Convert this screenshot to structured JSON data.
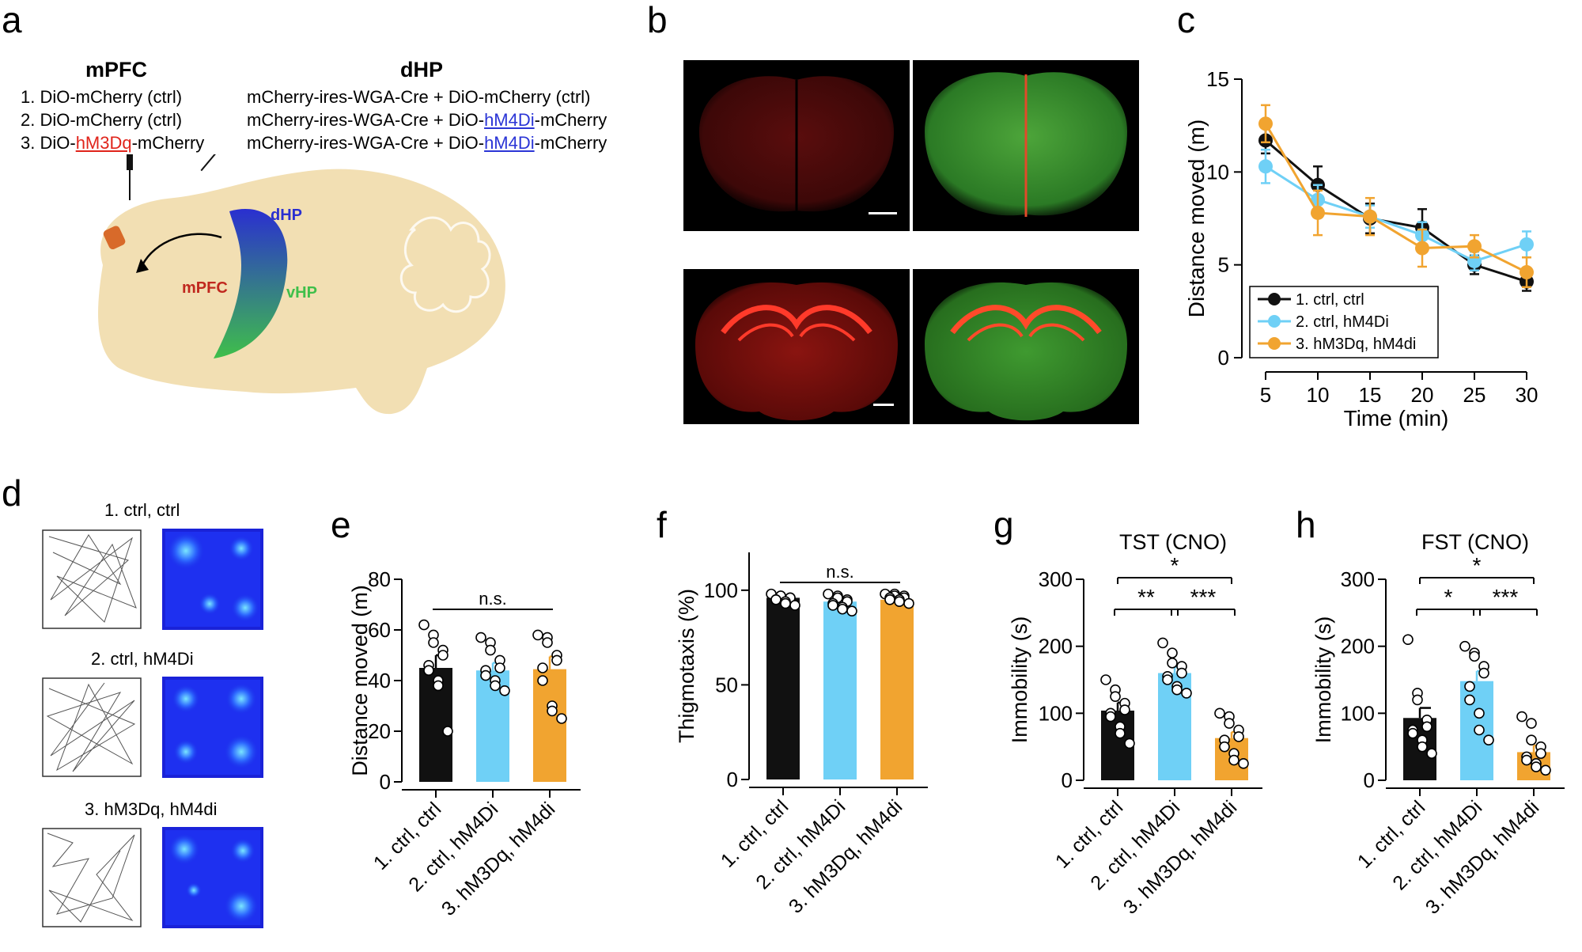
{
  "panel_letters": [
    "a",
    "b",
    "c",
    "d",
    "e",
    "f",
    "g",
    "h"
  ],
  "panel_a": {
    "mpfc_header": "mPFC",
    "mpfc_lines": [
      {
        "pre": "1. DiO-mCherry (ctrl)",
        "hl": "",
        "post": ""
      },
      {
        "pre": "2. DiO-mCherry (ctrl)",
        "hl": "",
        "post": ""
      },
      {
        "pre": "3. DiO-",
        "hl": "hM3Dq",
        "post": "-mCherry"
      }
    ],
    "dhp_header": "dHP",
    "dhp_lines": [
      {
        "pre": "mCherry-ires-WGA-Cre + DiO-mCherry (ctrl)",
        "hl": "",
        "post": ""
      },
      {
        "pre": "mCherry-ires-WGA-Cre + DiO-",
        "hl": "hM4Di",
        "post": "-mCherry"
      },
      {
        "pre": "mCherry-ires-WGA-Cre + DiO-",
        "hl": "hM4Di",
        "post": "-mCherry"
      }
    ],
    "brain_labels": {
      "dhp": "dHP",
      "vhp": "vHP",
      "mpfc": "mPFC"
    },
    "colors": {
      "hM3Dq": "#e0241b",
      "hM4Di": "#2b35d6",
      "brain": "#f2dfb3",
      "mpfc_region": "#d86a2a",
      "dhp_label": "#2a2fd0",
      "vhp_label": "#3fbf4a",
      "mpfc_label": "#c0281e"
    }
  },
  "panel_d": {
    "titles": [
      "1. ctrl, ctrl",
      "2. ctrl, hM4Di",
      "3. hM3Dq, hM4di"
    ]
  },
  "colors": {
    "ctrl": "#111111",
    "hM4Di": "#6fd0f6",
    "hM3Dq": "#f1a430"
  },
  "chart_data": [
    {
      "id": "c",
      "type": "line",
      "xlabel": "Time (min)",
      "ylabel": "Distance moved (m)",
      "x": [
        5,
        10,
        15,
        20,
        25,
        30
      ],
      "xticks": [
        "5",
        "10",
        "15",
        "20",
        "25",
        "30"
      ],
      "ylim": [
        0,
        15
      ],
      "yticks": [
        "0",
        "5",
        "10",
        "15"
      ],
      "legend_position": "bottom-left",
      "series": [
        {
          "name": "1. ctrl, ctrl",
          "color": "#111111",
          "values": [
            11.7,
            9.3,
            7.5,
            7.0,
            5.0,
            4.1
          ],
          "err": [
            0.7,
            1.0,
            0.8,
            1.0,
            0.5,
            0.5
          ]
        },
        {
          "name": "2. ctrl, hM4Di",
          "color": "#6fd0f6",
          "values": [
            10.3,
            8.5,
            7.6,
            6.6,
            5.2,
            6.1
          ],
          "err": [
            0.9,
            0.8,
            0.6,
            0.7,
            0.5,
            0.7
          ]
        },
        {
          "name": "3. hM3Dq, hM4di",
          "color": "#f1a430",
          "values": [
            12.6,
            7.8,
            7.6,
            5.9,
            6.0,
            4.6
          ],
          "err": [
            1.0,
            1.2,
            1.0,
            1.0,
            0.6,
            0.8
          ]
        }
      ]
    },
    {
      "id": "e",
      "type": "bar",
      "title": "",
      "ylabel": "Distance moved (m)",
      "categories": [
        "1. ctrl, ctrl",
        "2. ctrl, hM4Di",
        "3. hM3Dq, hM4di"
      ],
      "values": [
        45,
        44,
        44.5
      ],
      "err": [
        5,
        3,
        5
      ],
      "ylim": [
        0,
        80
      ],
      "yticks": [
        "0",
        "20",
        "40",
        "60",
        "80"
      ],
      "points": [
        [
          62,
          58,
          55,
          52,
          50,
          46,
          44,
          40,
          38,
          20
        ],
        [
          57,
          55,
          52,
          48,
          45,
          44,
          42,
          40,
          38,
          36
        ],
        [
          58,
          57,
          55,
          50,
          48,
          45,
          40,
          30,
          28,
          25
        ]
      ],
      "sig": [
        {
          "from": 0,
          "to": 2,
          "label": "n.s.",
          "level": 1
        }
      ]
    },
    {
      "id": "f",
      "type": "bar",
      "title": "",
      "ylabel": "Thigmotaxis (%)",
      "categories": [
        "1. ctrl, ctrl",
        "2. ctrl, hM4Di",
        "3. hM3Dq, hM4di"
      ],
      "values": [
        96,
        94,
        95
      ],
      "err": [
        1,
        1.5,
        1
      ],
      "ylim": [
        0,
        120
      ],
      "yticks": [
        "0",
        "50",
        "100"
      ],
      "points": [
        [
          98,
          97,
          97,
          96,
          96,
          95,
          95,
          94,
          93,
          92
        ],
        [
          98,
          97,
          96,
          95,
          94,
          93,
          92,
          91,
          90,
          89
        ],
        [
          98,
          98,
          97,
          97,
          96,
          96,
          95,
          95,
          94,
          93
        ]
      ],
      "sig": [
        {
          "from": 0,
          "to": 2,
          "label": "n.s.",
          "level": 1
        }
      ]
    },
    {
      "id": "g",
      "type": "bar",
      "title": "TST (CNO)",
      "ylabel": "Immobility (s)",
      "categories": [
        "1. ctrl, ctrl",
        "2. ctrl, hM4Di",
        "3. hM3Dq, hM4di"
      ],
      "values": [
        104,
        160,
        63
      ],
      "err": [
        12,
        9,
        9
      ],
      "ylim": [
        0,
        300
      ],
      "yticks": [
        "0",
        "100",
        "200",
        "300"
      ],
      "points": [
        [
          150,
          135,
          125,
          115,
          105,
          100,
          95,
          80,
          70,
          55
        ],
        [
          205,
          190,
          175,
          170,
          160,
          155,
          150,
          140,
          135,
          130
        ],
        [
          100,
          95,
          85,
          75,
          65,
          60,
          50,
          40,
          30,
          25
        ]
      ],
      "sig": [
        {
          "from": 0,
          "to": 2,
          "label": "*",
          "level": 2
        },
        {
          "from": 0,
          "to": 1,
          "label": "**",
          "level": 1
        },
        {
          "from": 1,
          "to": 2,
          "label": "***",
          "level": 1
        }
      ]
    },
    {
      "id": "h",
      "type": "bar",
      "title": "FST (CNO)",
      "ylabel": "Immobility (s)",
      "categories": [
        "1. ctrl, ctrl",
        "2. ctrl, hM4Di",
        "3. hM3Dq, hM4di"
      ],
      "values": [
        93,
        148,
        42
      ],
      "err": [
        15,
        15,
        10
      ],
      "ylim": [
        0,
        300
      ],
      "yticks": [
        "0",
        "100",
        "200",
        "300"
      ],
      "points": [
        [
          210,
          130,
          120,
          90,
          80,
          75,
          70,
          60,
          50,
          40
        ],
        [
          200,
          190,
          185,
          170,
          160,
          140,
          120,
          100,
          75,
          60
        ],
        [
          95,
          85,
          60,
          50,
          40,
          35,
          30,
          25,
          20,
          15
        ]
      ],
      "sig": [
        {
          "from": 0,
          "to": 2,
          "label": "*",
          "level": 2
        },
        {
          "from": 0,
          "to": 1,
          "label": "*",
          "level": 1
        },
        {
          "from": 1,
          "to": 2,
          "label": "***",
          "level": 1
        }
      ]
    }
  ]
}
